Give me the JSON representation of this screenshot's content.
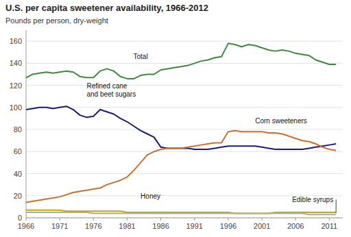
{
  "chart_data": {
    "type": "line",
    "title": "U.S. per capita sweetener availability, 1966-2012",
    "ylabel": "Pounds per person, dry-weight",
    "x": [
      1966,
      1967,
      1968,
      1969,
      1970,
      1971,
      1972,
      1973,
      1974,
      1975,
      1976,
      1977,
      1978,
      1979,
      1980,
      1981,
      1982,
      1983,
      1984,
      1985,
      1986,
      1987,
      1988,
      1989,
      1990,
      1991,
      1992,
      1993,
      1994,
      1995,
      1996,
      1997,
      1998,
      1999,
      2000,
      2001,
      2002,
      2003,
      2004,
      2005,
      2006,
      2007,
      2008,
      2009,
      2010,
      2011,
      2012
    ],
    "series": [
      {
        "name": "Total",
        "color": "#3a8a3a",
        "values": [
          127,
          130,
          131,
          132,
          131,
          132,
          133,
          132,
          128,
          127,
          127,
          133,
          135,
          133,
          128,
          126,
          126,
          129,
          130,
          130,
          134,
          135,
          136,
          137,
          138,
          140,
          142,
          143,
          145,
          146,
          158,
          157,
          155,
          157,
          156,
          154,
          152,
          151,
          152,
          151,
          149,
          148,
          147,
          143,
          141,
          139,
          139
        ]
      },
      {
        "name": "Refined cane\nand beet sugars",
        "color": "#1a1a72",
        "values": [
          98,
          99,
          100,
          100,
          99,
          100,
          101,
          98,
          93,
          91,
          92,
          98,
          96,
          94,
          90,
          87,
          83,
          79,
          76,
          73,
          64,
          63,
          63,
          63,
          63,
          62,
          62,
          62,
          63,
          64,
          65,
          65,
          65,
          65,
          65,
          64,
          63,
          62,
          62,
          62,
          62,
          62,
          63,
          64,
          65,
          66,
          67
        ]
      },
      {
        "name": "Corn sweeteners",
        "color": "#c87030",
        "values": [
          14,
          15,
          16,
          17,
          18,
          19,
          21,
          23,
          24,
          25,
          26,
          27,
          30,
          32,
          34,
          37,
          43,
          50,
          57,
          60,
          62,
          63,
          63,
          63,
          64,
          65,
          66,
          67,
          68,
          68,
          78,
          79,
          78,
          78,
          78,
          78,
          77,
          77,
          76,
          74,
          72,
          70,
          69,
          67,
          64,
          62,
          61
        ]
      },
      {
        "name": "Honey",
        "color": "#c8a800",
        "values": [
          7,
          7,
          7,
          7,
          7,
          7,
          6,
          6,
          6,
          6,
          6,
          6,
          6,
          6,
          6,
          5,
          5,
          5,
          5,
          5,
          5,
          5,
          5,
          5,
          5,
          5,
          5,
          5,
          5,
          5,
          5,
          4,
          4,
          4,
          4,
          4,
          4,
          5,
          5,
          5,
          5,
          5,
          5,
          5,
          5,
          5,
          5
        ]
      },
      {
        "name": "Edible syrups",
        "color": "#aaaaaa",
        "values": [
          5,
          5,
          5,
          5,
          5,
          5,
          5,
          5,
          5,
          5,
          4,
          4,
          4,
          4,
          4,
          4,
          4,
          4,
          4,
          4,
          4,
          4,
          4,
          4,
          4,
          4,
          4,
          4,
          4,
          4,
          4,
          4,
          4,
          4,
          4,
          4,
          4,
          4,
          4,
          4,
          4,
          4,
          3,
          3,
          3,
          3,
          3
        ]
      }
    ],
    "xlim": [
      1966,
      2013
    ],
    "xticks": [
      1966,
      1971,
      1976,
      1981,
      1986,
      1991,
      1996,
      2001,
      2006,
      2011
    ],
    "ylim": [
      0,
      170
    ],
    "yticks": [
      0,
      20,
      40,
      60,
      80,
      100,
      120,
      140,
      160
    ],
    "grid": true
  }
}
